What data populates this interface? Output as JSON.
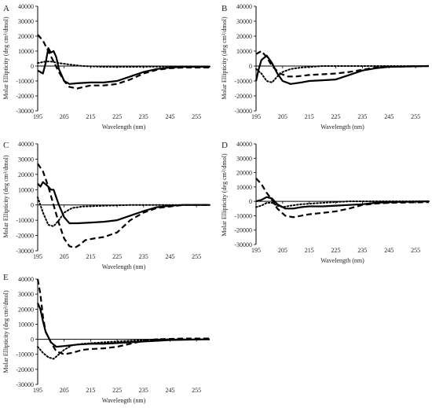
{
  "chart_data": [
    {
      "type": "line",
      "panel_label": "A",
      "xlabel": "Wavelength (nm)",
      "ylabel": "Molar Ellipticity (deg cm²/dmol)",
      "xlim": [
        195,
        260
      ],
      "ylim": [
        -30000,
        40000
      ],
      "xticks": [
        "195",
        "205",
        "215",
        "225",
        "235",
        "245",
        "255"
      ],
      "yticks": [
        "40000",
        "30000",
        "20000",
        "10000",
        "0",
        "-10000",
        "-20000",
        "-30000"
      ],
      "series": [
        {
          "style": "solid",
          "points": [
            [
              195,
              -3000
            ],
            [
              197,
              -5000
            ],
            [
              198,
              2000
            ],
            [
              199,
              12000
            ],
            [
              200,
              9000
            ],
            [
              201,
              10000
            ],
            [
              202,
              6000
            ],
            [
              203,
              -2000
            ],
            [
              205,
              -10000
            ],
            [
              207,
              -12000
            ],
            [
              210,
              -11500
            ],
            [
              215,
              -11000
            ],
            [
              220,
              -11000
            ],
            [
              225,
              -10000
            ],
            [
              230,
              -7000
            ],
            [
              235,
              -4000
            ],
            [
              240,
              -2000
            ],
            [
              245,
              -1000
            ],
            [
              250,
              -500
            ],
            [
              260,
              -500
            ]
          ]
        },
        {
          "style": "dashed",
          "points": [
            [
              195,
              21000
            ],
            [
              197,
              17000
            ],
            [
              199,
              10000
            ],
            [
              201,
              3000
            ],
            [
              203,
              -4000
            ],
            [
              205,
              -10000
            ],
            [
              207,
              -14000
            ],
            [
              210,
              -15000
            ],
            [
              215,
              -13000
            ],
            [
              220,
              -13000
            ],
            [
              225,
              -12000
            ],
            [
              230,
              -9000
            ],
            [
              235,
              -5000
            ],
            [
              240,
              -2500
            ],
            [
              245,
              -1500
            ],
            [
              250,
              -1000
            ],
            [
              260,
              -1000
            ]
          ]
        },
        {
          "style": "dotted",
          "points": [
            [
              195,
              2000
            ],
            [
              198,
              3000
            ],
            [
              200,
              3000
            ],
            [
              203,
              2000
            ],
            [
              207,
              1000
            ],
            [
              212,
              0
            ],
            [
              220,
              -500
            ],
            [
              230,
              -500
            ],
            [
              245,
              -300
            ],
            [
              260,
              -300
            ]
          ]
        }
      ]
    },
    {
      "type": "line",
      "panel_label": "B",
      "xlabel": "Wavelength (nm)",
      "ylabel": "Molar Ellipticity (deg cm²/dmol)",
      "xlim": [
        195,
        260
      ],
      "ylim": [
        -30000,
        40000
      ],
      "xticks": [
        "195",
        "205",
        "215",
        "225",
        "235",
        "245",
        "255"
      ],
      "yticks": [
        "40000",
        "30000",
        "20000",
        "10000",
        "0",
        "-10000",
        "-20000",
        "-30000"
      ],
      "series": [
        {
          "style": "solid",
          "points": [
            [
              195,
              -10000
            ],
            [
              196,
              -2000
            ],
            [
              197,
              4000
            ],
            [
              199,
              7000
            ],
            [
              201,
              2000
            ],
            [
              203,
              -5000
            ],
            [
              205,
              -10000
            ],
            [
              208,
              -12000
            ],
            [
              212,
              -11000
            ],
            [
              215,
              -10000
            ],
            [
              220,
              -9500
            ],
            [
              225,
              -9000
            ],
            [
              230,
              -6000
            ],
            [
              235,
              -3000
            ],
            [
              240,
              -1500
            ],
            [
              245,
              -500
            ],
            [
              260,
              0
            ]
          ]
        },
        {
          "style": "dashed",
          "points": [
            [
              195,
              8000
            ],
            [
              197,
              10000
            ],
            [
              199,
              6000
            ],
            [
              201,
              0
            ],
            [
              204,
              -5000
            ],
            [
              207,
              -7000
            ],
            [
              210,
              -7000
            ],
            [
              215,
              -6000
            ],
            [
              220,
              -5500
            ],
            [
              225,
              -5000
            ],
            [
              230,
              -4000
            ],
            [
              235,
              -2500
            ],
            [
              240,
              -1000
            ],
            [
              245,
              -500
            ],
            [
              260,
              0
            ]
          ]
        },
        {
          "style": "dotted",
          "points": [
            [
              195,
              -2000
            ],
            [
              197,
              -5000
            ],
            [
              199,
              -10000
            ],
            [
              201,
              -11000
            ],
            [
              203,
              -7000
            ],
            [
              205,
              -4000
            ],
            [
              208,
              -2000
            ],
            [
              212,
              -1000
            ],
            [
              220,
              0
            ],
            [
              230,
              0
            ],
            [
              260,
              0
            ]
          ]
        }
      ]
    },
    {
      "type": "line",
      "panel_label": "C",
      "xlabel": "Wavelength (nm)",
      "ylabel": "Molar Ellipticity (deg cm²/dmol)",
      "xlim": [
        195,
        260
      ],
      "ylim": [
        -30000,
        40000
      ],
      "xticks": [
        "195",
        "205",
        "215",
        "225",
        "235",
        "245",
        "255"
      ],
      "yticks": [
        "40000",
        "30000",
        "20000",
        "10000",
        "0",
        "-10000",
        "-20000",
        "-30000"
      ],
      "series": [
        {
          "style": "solid",
          "points": [
            [
              195,
              14000
            ],
            [
              196,
              12000
            ],
            [
              197,
              15000
            ],
            [
              199,
              12000
            ],
            [
              200,
              10000
            ],
            [
              201,
              10000
            ],
            [
              203,
              0
            ],
            [
              205,
              -8000
            ],
            [
              207,
              -12000
            ],
            [
              210,
              -12000
            ],
            [
              215,
              -11500
            ],
            [
              220,
              -11000
            ],
            [
              225,
              -10000
            ],
            [
              230,
              -7000
            ],
            [
              235,
              -4000
            ],
            [
              240,
              -1500
            ],
            [
              245,
              -500
            ],
            [
              250,
              0
            ],
            [
              260,
              0
            ]
          ]
        },
        {
          "style": "dashed",
          "points": [
            [
              195,
              27000
            ],
            [
              197,
              22000
            ],
            [
              199,
              12000
            ],
            [
              201,
              0
            ],
            [
              203,
              -12000
            ],
            [
              205,
              -22000
            ],
            [
              207,
              -27000
            ],
            [
              209,
              -28000
            ],
            [
              211,
              -26000
            ],
            [
              213,
              -23000
            ],
            [
              216,
              -22000
            ],
            [
              220,
              -21000
            ],
            [
              225,
              -18000
            ],
            [
              230,
              -10000
            ],
            [
              235,
              -5000
            ],
            [
              240,
              -2000
            ],
            [
              245,
              -1000
            ],
            [
              250,
              0
            ],
            [
              260,
              0
            ]
          ]
        },
        {
          "style": "dotted",
          "points": [
            [
              195,
              5000
            ],
            [
              197,
              -5000
            ],
            [
              199,
              -13000
            ],
            [
              201,
              -14000
            ],
            [
              203,
              -10000
            ],
            [
              205,
              -5000
            ],
            [
              208,
              -2000
            ],
            [
              212,
              -1000
            ],
            [
              220,
              -500
            ],
            [
              230,
              0
            ],
            [
              260,
              0
            ]
          ]
        }
      ]
    },
    {
      "type": "line",
      "panel_label": "D",
      "xlabel": "Wavelength (nm)",
      "ylabel": "Molar Ellipticity (deg cm²/dmol)",
      "xlim": [
        195,
        260
      ],
      "ylim": [
        -30000,
        40000
      ],
      "xticks": [
        "195",
        "205",
        "215",
        "225",
        "235",
        "245",
        "255"
      ],
      "yticks": [
        "40000",
        "30000",
        "20000",
        "10000",
        "0",
        "-10000",
        "-20000",
        "-30000"
      ],
      "series": [
        {
          "style": "solid",
          "points": [
            [
              195,
              0
            ],
            [
              197,
              1000
            ],
            [
              199,
              3000
            ],
            [
              201,
              2000
            ],
            [
              203,
              -2000
            ],
            [
              206,
              -5000
            ],
            [
              209,
              -5000
            ],
            [
              212,
              -4000
            ],
            [
              215,
              -3500
            ],
            [
              220,
              -3500
            ],
            [
              225,
              -3000
            ],
            [
              230,
              -2500
            ],
            [
              235,
              -2000
            ],
            [
              240,
              -1000
            ],
            [
              245,
              -500
            ],
            [
              260,
              0
            ]
          ]
        },
        {
          "style": "dashed",
          "points": [
            [
              195,
              16000
            ],
            [
              197,
              12000
            ],
            [
              199,
              6000
            ],
            [
              201,
              1000
            ],
            [
              203,
              -5000
            ],
            [
              206,
              -10000
            ],
            [
              209,
              -11000
            ],
            [
              212,
              -10000
            ],
            [
              215,
              -9000
            ],
            [
              220,
              -8000
            ],
            [
              225,
              -7000
            ],
            [
              230,
              -5000
            ],
            [
              235,
              -2500
            ],
            [
              240,
              -1500
            ],
            [
              245,
              -1000
            ],
            [
              260,
              -500
            ]
          ]
        },
        {
          "style": "dotted",
          "points": [
            [
              195,
              -4000
            ],
            [
              197,
              -3000
            ],
            [
              199,
              -1000
            ],
            [
              201,
              -1000
            ],
            [
              203,
              -3000
            ],
            [
              205,
              -4000
            ],
            [
              208,
              -3000
            ],
            [
              212,
              -2000
            ],
            [
              220,
              -1000
            ],
            [
              230,
              0
            ],
            [
              245,
              0
            ],
            [
              260,
              0
            ]
          ]
        }
      ]
    },
    {
      "type": "line",
      "panel_label": "E",
      "xlabel": "Wavelength (nm)",
      "ylabel": "Molar Ellipticity (deg cm²/dmol)",
      "xlim": [
        195,
        260
      ],
      "ylim": [
        -30000,
        40000
      ],
      "xticks": [
        "195",
        "205",
        "215",
        "225",
        "235",
        "245",
        "255"
      ],
      "yticks": [
        "40000",
        "30000",
        "20000",
        "10000",
        "0",
        "-10000",
        "-20000",
        "-30000"
      ],
      "series": [
        {
          "style": "solid",
          "points": [
            [
              195,
              24000
            ],
            [
              196,
              20000
            ],
            [
              197,
              12000
            ],
            [
              198,
              5000
            ],
            [
              200,
              -2000
            ],
            [
              202,
              -5000
            ],
            [
              205,
              -4500
            ],
            [
              210,
              -3500
            ],
            [
              215,
              -3000
            ],
            [
              220,
              -3000
            ],
            [
              225,
              -2500
            ],
            [
              230,
              -2000
            ],
            [
              235,
              -1500
            ],
            [
              240,
              -1000
            ],
            [
              245,
              -500
            ],
            [
              260,
              0
            ]
          ]
        },
        {
          "style": "dashed",
          "points": [
            [
              195,
              40000
            ],
            [
              196,
              30000
            ],
            [
              197,
              15000
            ],
            [
              198,
              5000
            ],
            [
              200,
              -2000
            ],
            [
              202,
              -8000
            ],
            [
              205,
              -10000
            ],
            [
              208,
              -9000
            ],
            [
              212,
              -7000
            ],
            [
              215,
              -6500
            ],
            [
              220,
              -6000
            ],
            [
              225,
              -5000
            ],
            [
              230,
              -3000
            ],
            [
              235,
              -1000
            ],
            [
              240,
              0
            ],
            [
              250,
              500
            ],
            [
              260,
              500
            ]
          ]
        },
        {
          "style": "dotted",
          "points": [
            [
              195,
              -5000
            ],
            [
              197,
              -9000
            ],
            [
              199,
              -12000
            ],
            [
              201,
              -13000
            ],
            [
              203,
              -10000
            ],
            [
              205,
              -7000
            ],
            [
              208,
              -4000
            ],
            [
              212,
              -3000
            ],
            [
              220,
              -2000
            ],
            [
              230,
              -1000
            ],
            [
              240,
              0
            ],
            [
              260,
              0
            ]
          ]
        }
      ]
    }
  ]
}
